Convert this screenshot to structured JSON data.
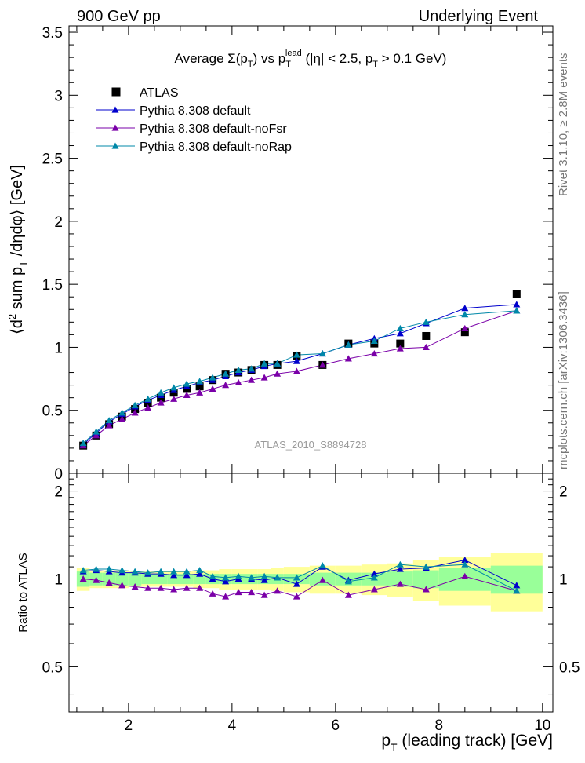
{
  "header": {
    "left": "900 GeV pp",
    "right": "Underlying Event"
  },
  "side_labels": {
    "rivet": "Rivet 3.1.10, ≥ 2.8M events",
    "mcplots": "mcplots.cern.ch [arXiv:1306.3436]"
  },
  "analysis_id": "ATLAS_2010_S8894728",
  "colors": {
    "data": "#000000",
    "default": "#0000cc",
    "noFsr": "#7a00a8",
    "noRap": "#0088a8",
    "band_outer": "#ffff99",
    "band_inner": "#99ff99"
  },
  "chart_data": [
    {
      "type": "scatter",
      "title": "Average Σ(p_T) vs p_T^lead (|η| < 2.5, p_T > 0.1 GeV)",
      "ylabel": "⟨d² sum p_T /dηdφ⟩ [GeV]",
      "ylim": [
        0,
        3.55
      ],
      "yticks": [
        "0",
        "0.5",
        "1",
        "1.5",
        "2",
        "2.5",
        "3",
        "3.5"
      ],
      "xlim": [
        0.85,
        10.2
      ],
      "legend_position": "top-left",
      "series": [
        {
          "name": "ATLAS",
          "marker": "square",
          "x": [
            1.125,
            1.375,
            1.625,
            1.875,
            2.125,
            2.375,
            2.625,
            2.875,
            3.125,
            3.375,
            3.625,
            3.875,
            4.125,
            4.375,
            4.625,
            4.875,
            5.25,
            5.75,
            6.25,
            6.75,
            7.25,
            7.75,
            8.5,
            9.5
          ],
          "y": [
            0.22,
            0.3,
            0.39,
            0.45,
            0.51,
            0.56,
            0.6,
            0.64,
            0.67,
            0.69,
            0.74,
            0.79,
            0.8,
            0.82,
            0.86,
            0.86,
            0.93,
            0.86,
            1.03,
            1.03,
            1.03,
            1.09,
            1.12,
            1.42
          ]
        },
        {
          "name": "Pythia 8.308 default",
          "marker": "triangle",
          "x": [
            1.125,
            1.375,
            1.625,
            1.875,
            2.125,
            2.375,
            2.625,
            2.875,
            3.125,
            3.375,
            3.625,
            3.875,
            4.125,
            4.375,
            4.625,
            4.875,
            5.25,
            5.75,
            6.25,
            6.75,
            7.25,
            7.75,
            8.5,
            9.5
          ],
          "y": [
            0.23,
            0.32,
            0.41,
            0.47,
            0.53,
            0.58,
            0.62,
            0.66,
            0.69,
            0.72,
            0.74,
            0.77,
            0.8,
            0.82,
            0.85,
            0.87,
            0.89,
            0.95,
            1.02,
            1.07,
            1.11,
            1.19,
            1.31,
            1.34
          ]
        },
        {
          "name": "Pythia 8.308 default-noFsr",
          "marker": "triangle",
          "x": [
            1.125,
            1.375,
            1.625,
            1.875,
            2.125,
            2.375,
            2.625,
            2.875,
            3.125,
            3.375,
            3.625,
            3.875,
            4.125,
            4.375,
            4.625,
            4.875,
            5.25,
            5.75,
            6.25,
            6.75,
            7.25,
            7.75,
            8.5,
            9.5
          ],
          "y": [
            0.22,
            0.3,
            0.38,
            0.43,
            0.48,
            0.52,
            0.56,
            0.59,
            0.62,
            0.64,
            0.67,
            0.7,
            0.72,
            0.74,
            0.76,
            0.79,
            0.81,
            0.86,
            0.91,
            0.95,
            0.99,
            1.0,
            1.15,
            1.29
          ]
        },
        {
          "name": "Pythia 8.308 default-noRap",
          "marker": "triangle",
          "x": [
            1.125,
            1.375,
            1.625,
            1.875,
            2.125,
            2.375,
            2.625,
            2.875,
            3.125,
            3.375,
            3.625,
            3.875,
            4.125,
            4.375,
            4.625,
            4.875,
            5.25,
            5.75,
            6.25,
            6.75,
            7.25,
            7.75,
            8.5,
            9.5
          ],
          "y": [
            0.24,
            0.33,
            0.42,
            0.48,
            0.54,
            0.59,
            0.64,
            0.68,
            0.71,
            0.73,
            0.76,
            0.79,
            0.82,
            0.83,
            0.87,
            0.87,
            0.94,
            0.95,
            1.02,
            1.05,
            1.15,
            1.2,
            1.26,
            1.29
          ]
        }
      ]
    },
    {
      "type": "scatter",
      "ylabel": "Ratio to ATLAS",
      "xlabel": "p_T (leading track) [GeV]",
      "ylim": [
        0.35,
        2.3
      ],
      "yticks": [
        "0.5",
        "1",
        "2"
      ],
      "xlim": [
        0.85,
        10.2
      ],
      "xticks": [
        "2",
        "4",
        "6",
        "8",
        "10"
      ],
      "bin_edges": [
        1.0,
        1.25,
        1.5,
        1.75,
        2.0,
        2.25,
        2.5,
        2.75,
        3.0,
        3.25,
        3.5,
        3.75,
        4.0,
        4.25,
        4.5,
        4.75,
        5.0,
        5.5,
        6.0,
        6.5,
        7.0,
        7.5,
        8.0,
        9.0,
        10.0
      ],
      "band_inner_half": [
        0.06,
        0.05,
        0.05,
        0.05,
        0.05,
        0.04,
        0.04,
        0.04,
        0.04,
        0.04,
        0.04,
        0.04,
        0.04,
        0.04,
        0.04,
        0.04,
        0.04,
        0.05,
        0.05,
        0.05,
        0.06,
        0.07,
        0.09,
        0.11
      ],
      "band_outer_half": [
        0.09,
        0.07,
        0.07,
        0.07,
        0.06,
        0.06,
        0.06,
        0.06,
        0.06,
        0.07,
        0.07,
        0.08,
        0.08,
        0.08,
        0.08,
        0.09,
        0.1,
        0.11,
        0.11,
        0.12,
        0.13,
        0.16,
        0.19,
        0.23
      ],
      "series": [
        {
          "name": "Pythia 8.308 default",
          "y": [
            1.06,
            1.07,
            1.06,
            1.05,
            1.05,
            1.04,
            1.04,
            1.03,
            1.03,
            1.04,
            1.0,
            0.98,
            1.0,
            1.0,
            0.99,
            1.01,
            0.96,
            1.1,
            0.99,
            1.04,
            1.08,
            1.09,
            1.16,
            0.95
          ]
        },
        {
          "name": "Pythia 8.308 default-noFsr",
          "y": [
            1.0,
            0.99,
            0.97,
            0.95,
            0.94,
            0.93,
            0.93,
            0.92,
            0.93,
            0.93,
            0.89,
            0.87,
            0.9,
            0.9,
            0.88,
            0.91,
            0.87,
            0.99,
            0.88,
            0.92,
            0.96,
            0.92,
            1.02,
            0.91
          ]
        },
        {
          "name": "Pythia 8.308 default-noRap",
          "y": [
            1.07,
            1.08,
            1.08,
            1.07,
            1.06,
            1.05,
            1.06,
            1.06,
            1.06,
            1.07,
            1.02,
            1.01,
            1.02,
            1.01,
            1.02,
            1.01,
            1.01,
            1.11,
            0.98,
            1.01,
            1.12,
            1.1,
            1.12,
            0.91
          ]
        }
      ]
    }
  ]
}
